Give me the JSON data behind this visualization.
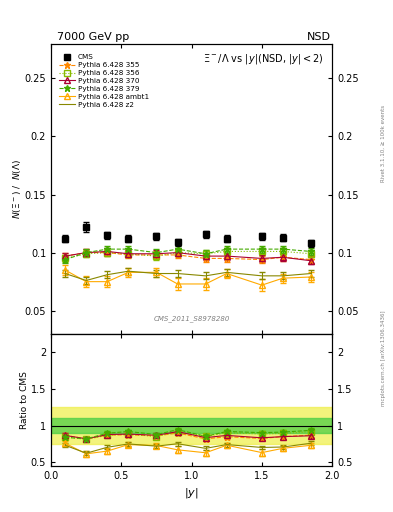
{
  "title_left": "7000 GeV pp",
  "title_right": "NSD",
  "plot_title": "$\\Xi^-/\\Lambda$ vs $|y|$(NSD, $|y| < 2$)",
  "ylabel_main": "$N(\\Xi^-)$ /  $N(\\Lambda)$",
  "ylabel_ratio": "Ratio to CMS",
  "xlabel": "$|y|$",
  "right_label_top": "Rivet 3.1.10, ≥ 100k events",
  "right_label_bot": "mcplots.cern.ch [arXiv:1306.3436]",
  "watermark": "CMS_2011_S8978280",
  "ylim_main": [
    0.03,
    0.28
  ],
  "ylim_ratio": [
    0.45,
    2.25
  ],
  "yticks_main": [
    0.05,
    0.1,
    0.15,
    0.2,
    0.25
  ],
  "yticks_ratio": [
    0.5,
    1.0,
    1.5,
    2.0
  ],
  "cms_x": [
    0.1,
    0.25,
    0.4,
    0.55,
    0.75,
    0.9,
    1.1,
    1.25,
    1.5,
    1.65,
    1.85
  ],
  "cms_y": [
    0.112,
    0.122,
    0.115,
    0.112,
    0.114,
    0.109,
    0.116,
    0.112,
    0.114,
    0.113,
    0.108
  ],
  "cms_yerr": [
    0.003,
    0.004,
    0.003,
    0.003,
    0.003,
    0.003,
    0.003,
    0.003,
    0.003,
    0.003,
    0.003
  ],
  "series": [
    {
      "label": "Pythia 6.428 355",
      "color": "#ff8800",
      "linestyle": "--",
      "marker": "*",
      "markersize": 5,
      "markerfacecolor": "#ff8800",
      "x": [
        0.1,
        0.25,
        0.4,
        0.55,
        0.75,
        0.9,
        1.1,
        1.25,
        1.5,
        1.65,
        1.85
      ],
      "y": [
        0.097,
        0.1,
        0.1,
        0.098,
        0.098,
        0.098,
        0.095,
        0.095,
        0.094,
        0.096,
        0.094
      ],
      "yerr": [
        0.003,
        0.003,
        0.003,
        0.003,
        0.003,
        0.003,
        0.003,
        0.003,
        0.003,
        0.003,
        0.003
      ]
    },
    {
      "label": "Pythia 6.428 356",
      "color": "#88bb00",
      "linestyle": ":",
      "marker": "s",
      "markersize": 4,
      "markerfacecolor": "none",
      "x": [
        0.1,
        0.25,
        0.4,
        0.55,
        0.75,
        0.9,
        1.1,
        1.25,
        1.5,
        1.65,
        1.85
      ],
      "y": [
        0.095,
        0.099,
        0.1,
        0.099,
        0.097,
        0.1,
        0.099,
        0.101,
        0.101,
        0.101,
        0.099
      ],
      "yerr": [
        0.003,
        0.003,
        0.003,
        0.003,
        0.003,
        0.003,
        0.003,
        0.003,
        0.003,
        0.003,
        0.003
      ]
    },
    {
      "label": "Pythia 6.428 370",
      "color": "#aa0033",
      "linestyle": "-",
      "marker": "^",
      "markersize": 4,
      "markerfacecolor": "none",
      "x": [
        0.1,
        0.25,
        0.4,
        0.55,
        0.75,
        0.9,
        1.1,
        1.25,
        1.5,
        1.65,
        1.85
      ],
      "y": [
        0.097,
        0.1,
        0.101,
        0.099,
        0.099,
        0.1,
        0.097,
        0.097,
        0.095,
        0.096,
        0.093
      ],
      "yerr": [
        0.003,
        0.003,
        0.003,
        0.003,
        0.003,
        0.003,
        0.003,
        0.003,
        0.003,
        0.003,
        0.003
      ]
    },
    {
      "label": "Pythia 6.428 379",
      "color": "#44aa00",
      "linestyle": "--",
      "marker": "*",
      "markersize": 5,
      "markerfacecolor": "#44aa00",
      "x": [
        0.1,
        0.25,
        0.4,
        0.55,
        0.75,
        0.9,
        1.1,
        1.25,
        1.5,
        1.65,
        1.85
      ],
      "y": [
        0.094,
        0.1,
        0.103,
        0.103,
        0.1,
        0.103,
        0.099,
        0.103,
        0.103,
        0.103,
        0.101
      ],
      "yerr": [
        0.003,
        0.003,
        0.003,
        0.003,
        0.003,
        0.003,
        0.003,
        0.003,
        0.003,
        0.003,
        0.003
      ]
    },
    {
      "label": "Pythia 6.428 ambt1",
      "color": "#ffaa00",
      "linestyle": "-",
      "marker": "^",
      "markersize": 4,
      "markerfacecolor": "none",
      "x": [
        0.1,
        0.25,
        0.4,
        0.55,
        0.75,
        0.9,
        1.1,
        1.25,
        1.5,
        1.65,
        1.85
      ],
      "y": [
        0.085,
        0.075,
        0.075,
        0.083,
        0.083,
        0.073,
        0.073,
        0.082,
        0.072,
        0.078,
        0.079
      ],
      "yerr": [
        0.004,
        0.005,
        0.005,
        0.004,
        0.004,
        0.005,
        0.005,
        0.004,
        0.005,
        0.004,
        0.004
      ]
    },
    {
      "label": "Pythia 6.428 z2",
      "color": "#888800",
      "linestyle": "-",
      "marker": "None",
      "markersize": 0,
      "markerfacecolor": "#888800",
      "x": [
        0.1,
        0.25,
        0.4,
        0.55,
        0.75,
        0.9,
        1.1,
        1.25,
        1.5,
        1.65,
        1.85
      ],
      "y": [
        0.082,
        0.076,
        0.081,
        0.084,
        0.082,
        0.082,
        0.08,
        0.083,
        0.08,
        0.08,
        0.082
      ],
      "yerr": [
        0.003,
        0.003,
        0.003,
        0.003,
        0.003,
        0.003,
        0.003,
        0.003,
        0.003,
        0.003,
        0.003
      ]
    }
  ],
  "band_yellow": [
    0.75,
    1.25
  ],
  "band_green": [
    0.9,
    1.1
  ],
  "xmin": 0.0,
  "xmax": 2.0
}
